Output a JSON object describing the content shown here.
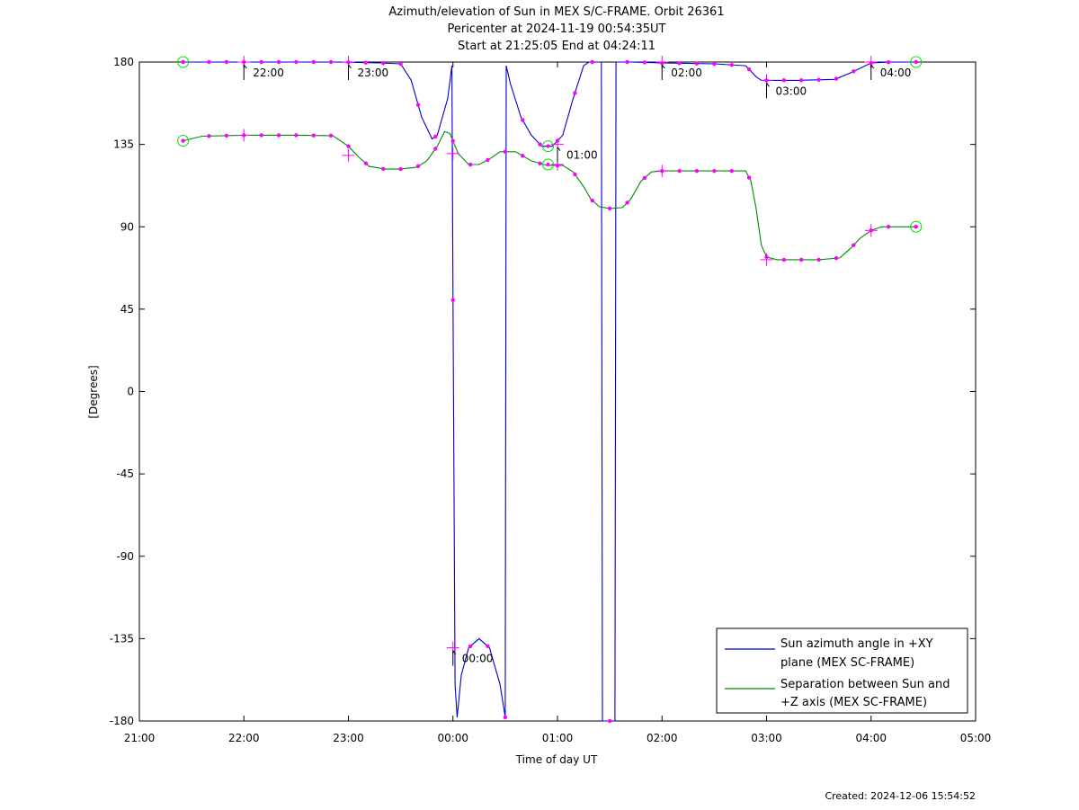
{
  "chart_data": {
    "type": "line",
    "title_lines": [
      "Azimuth/elevation of Sun in MEX S/C-FRAME.  Orbit 26361",
      "Pericenter at 2024-11-19 00:54:35UT",
      "Start at 21:25:05 End at 04:24:11"
    ],
    "xlabel": "Time of day UT",
    "ylabel": "[Degrees]",
    "x_unit": "hours after 21:00",
    "xlim": [
      0,
      8
    ],
    "ylim": [
      -180,
      180
    ],
    "x_ticks": [
      {
        "value": 0,
        "label": "21:00"
      },
      {
        "value": 1,
        "label": "22:00"
      },
      {
        "value": 2,
        "label": "23:00"
      },
      {
        "value": 3,
        "label": "00:00"
      },
      {
        "value": 4,
        "label": "01:00"
      },
      {
        "value": 5,
        "label": "02:00"
      },
      {
        "value": 6,
        "label": "03:00"
      },
      {
        "value": 7,
        "label": "04:00"
      },
      {
        "value": 8,
        "label": "05:00"
      }
    ],
    "y_ticks": [
      180,
      135,
      90,
      45,
      0,
      -45,
      -90,
      -135,
      -180
    ],
    "grid": false,
    "legend_position": "bottom-right",
    "series": [
      {
        "name": "Sun azimuth angle in +XY plane (MEX SC-FRAME)",
        "legend_lines": [
          "Sun azimuth angle in +XY",
          "plane (MEX SC-FRAME)"
        ],
        "color": "#0000cc",
        "points": [
          [
            0.418,
            180
          ],
          [
            1.0,
            180
          ],
          [
            1.9,
            180
          ],
          [
            2.3,
            179.5
          ],
          [
            2.5,
            179
          ],
          [
            2.6,
            170
          ],
          [
            2.7,
            150
          ],
          [
            2.8,
            138
          ],
          [
            2.85,
            140
          ],
          [
            2.95,
            160
          ],
          [
            2.99,
            178
          ],
          [
            3.0,
            50
          ],
          [
            3.02,
            -160
          ],
          [
            3.04,
            -178
          ],
          [
            3.08,
            -155
          ],
          [
            3.15,
            -140
          ],
          [
            3.25,
            -135
          ],
          [
            3.35,
            -140
          ],
          [
            3.45,
            -160
          ],
          [
            3.5,
            -178
          ],
          [
            3.51,
            178
          ],
          [
            3.55,
            168
          ],
          [
            3.65,
            150
          ],
          [
            3.75,
            140
          ],
          [
            3.85,
            134
          ],
          [
            3.95,
            134
          ],
          [
            4.05,
            140
          ],
          [
            4.15,
            160
          ],
          [
            4.25,
            178
          ],
          [
            4.3,
            180
          ],
          [
            4.42,
            180
          ],
          [
            4.43,
            -180
          ],
          [
            4.55,
            -180
          ],
          [
            4.56,
            180
          ],
          [
            4.7,
            180
          ],
          [
            5.0,
            179.5
          ],
          [
            5.5,
            179
          ],
          [
            5.8,
            178
          ],
          [
            5.9,
            172
          ],
          [
            5.95,
            170
          ],
          [
            6.3,
            170
          ],
          [
            6.65,
            170.5
          ],
          [
            6.8,
            174
          ],
          [
            7.0,
            179.5
          ],
          [
            7.2,
            180
          ],
          [
            7.43,
            180
          ]
        ],
        "markers": [
          {
            "x": 0.418,
            "y": 180,
            "marker": "circle"
          },
          {
            "x": 1.0,
            "y": 180,
            "marker": "cross"
          },
          {
            "x": 2.0,
            "y": 180,
            "marker": "cross"
          },
          {
            "x": 3.0,
            "y": -140,
            "marker": "cross"
          },
          {
            "x": 3.91,
            "y": 134,
            "marker": "circle"
          },
          {
            "x": 4.0,
            "y": 135,
            "marker": "cross"
          },
          {
            "x": 5.0,
            "y": 180,
            "marker": "cross"
          },
          {
            "x": 6.0,
            "y": 170,
            "marker": "cross"
          },
          {
            "x": 7.0,
            "y": 180,
            "marker": "cross"
          },
          {
            "x": 7.43,
            "y": 180,
            "marker": "circle"
          }
        ],
        "dots_x": [
          0.418,
          0.667,
          0.833,
          1.0,
          1.167,
          1.333,
          1.5,
          1.667,
          1.833,
          2.0,
          2.167,
          2.333,
          2.5,
          2.667,
          2.833,
          3.0,
          3.167,
          3.333,
          3.5,
          3.667,
          3.833,
          4.0,
          4.167,
          4.333,
          4.5,
          4.667,
          4.833,
          5.0,
          5.167,
          5.333,
          5.5,
          5.667,
          5.833,
          6.0,
          6.167,
          6.333,
          6.5,
          6.667,
          6.833,
          7.0,
          7.167,
          7.43
        ]
      },
      {
        "name": "Separation between Sun and +Z axis (MEX SC-FRAME)",
        "legend_lines": [
          "Separation between Sun and",
          "+Z axis (MEX SC-FRAME)"
        ],
        "color": "#008800",
        "points": [
          [
            0.418,
            137
          ],
          [
            0.6,
            139.5
          ],
          [
            1.0,
            140
          ],
          [
            1.5,
            140
          ],
          [
            1.85,
            139.8
          ],
          [
            2.0,
            134
          ],
          [
            2.1,
            128
          ],
          [
            2.2,
            123
          ],
          [
            2.35,
            121.5
          ],
          [
            2.5,
            121.5
          ],
          [
            2.65,
            122.5
          ],
          [
            2.75,
            126
          ],
          [
            2.85,
            134
          ],
          [
            2.92,
            142
          ],
          [
            2.97,
            141
          ],
          [
            3.05,
            130
          ],
          [
            3.15,
            124
          ],
          [
            3.25,
            124
          ],
          [
            3.35,
            127
          ],
          [
            3.45,
            131
          ],
          [
            3.6,
            131
          ],
          [
            3.75,
            126
          ],
          [
            3.9,
            123.5
          ],
          [
            4.05,
            123.5
          ],
          [
            4.15,
            120
          ],
          [
            4.25,
            112
          ],
          [
            4.32,
            105
          ],
          [
            4.4,
            101
          ],
          [
            4.5,
            100
          ],
          [
            4.62,
            100.5
          ],
          [
            4.7,
            105
          ],
          [
            4.8,
            115
          ],
          [
            4.9,
            120
          ],
          [
            5.0,
            120.5
          ],
          [
            5.8,
            120.5
          ],
          [
            5.85,
            115
          ],
          [
            5.9,
            100
          ],
          [
            5.95,
            80
          ],
          [
            6.0,
            73.5
          ],
          [
            6.1,
            72
          ],
          [
            6.5,
            72
          ],
          [
            6.7,
            73
          ],
          [
            6.8,
            78
          ],
          [
            6.9,
            84
          ],
          [
            7.0,
            88
          ],
          [
            7.1,
            90
          ],
          [
            7.43,
            90
          ]
        ],
        "markers": [
          {
            "x": 0.418,
            "y": 137,
            "marker": "circle"
          },
          {
            "x": 1.0,
            "y": 140,
            "marker": "cross"
          },
          {
            "x": 2.0,
            "y": 129,
            "marker": "cross"
          },
          {
            "x": 3.0,
            "y": 130,
            "marker": "cross"
          },
          {
            "x": 3.91,
            "y": 124,
            "marker": "circle"
          },
          {
            "x": 4.0,
            "y": 124,
            "marker": "cross"
          },
          {
            "x": 5.0,
            "y": 120.5,
            "marker": "cross"
          },
          {
            "x": 6.0,
            "y": 72,
            "marker": "cross"
          },
          {
            "x": 7.0,
            "y": 88,
            "marker": "cross"
          },
          {
            "x": 7.43,
            "y": 90,
            "marker": "circle"
          }
        ],
        "dots_x": [
          0.418,
          0.667,
          0.833,
          1.0,
          1.167,
          1.333,
          1.5,
          1.667,
          1.833,
          2.0,
          2.167,
          2.333,
          2.5,
          2.667,
          2.833,
          3.0,
          3.167,
          3.333,
          3.5,
          3.667,
          3.833,
          4.0,
          4.167,
          4.333,
          4.5,
          4.667,
          4.833,
          5.0,
          5.167,
          5.333,
          5.5,
          5.667,
          5.833,
          6.0,
          6.167,
          6.333,
          6.5,
          6.667,
          6.833,
          7.0,
          7.167,
          7.43
        ]
      }
    ],
    "hour_annotations": [
      {
        "x": 1.0,
        "y": 180,
        "label": "22:00"
      },
      {
        "x": 2.0,
        "y": 180,
        "label": "23:00"
      },
      {
        "x": 3.0,
        "y": -140,
        "label": "00:00"
      },
      {
        "x": 4.0,
        "y": 135,
        "label": "01:00"
      },
      {
        "x": 5.0,
        "y": 180,
        "label": "02:00"
      },
      {
        "x": 6.0,
        "y": 170,
        "label": "03:00"
      },
      {
        "x": 7.0,
        "y": 180,
        "label": "04:00"
      }
    ],
    "dot_color": "#ff00ff",
    "circle_color": "#00dd00"
  },
  "footer": {
    "created": "Created: 2024-12-06 15:54:52"
  }
}
